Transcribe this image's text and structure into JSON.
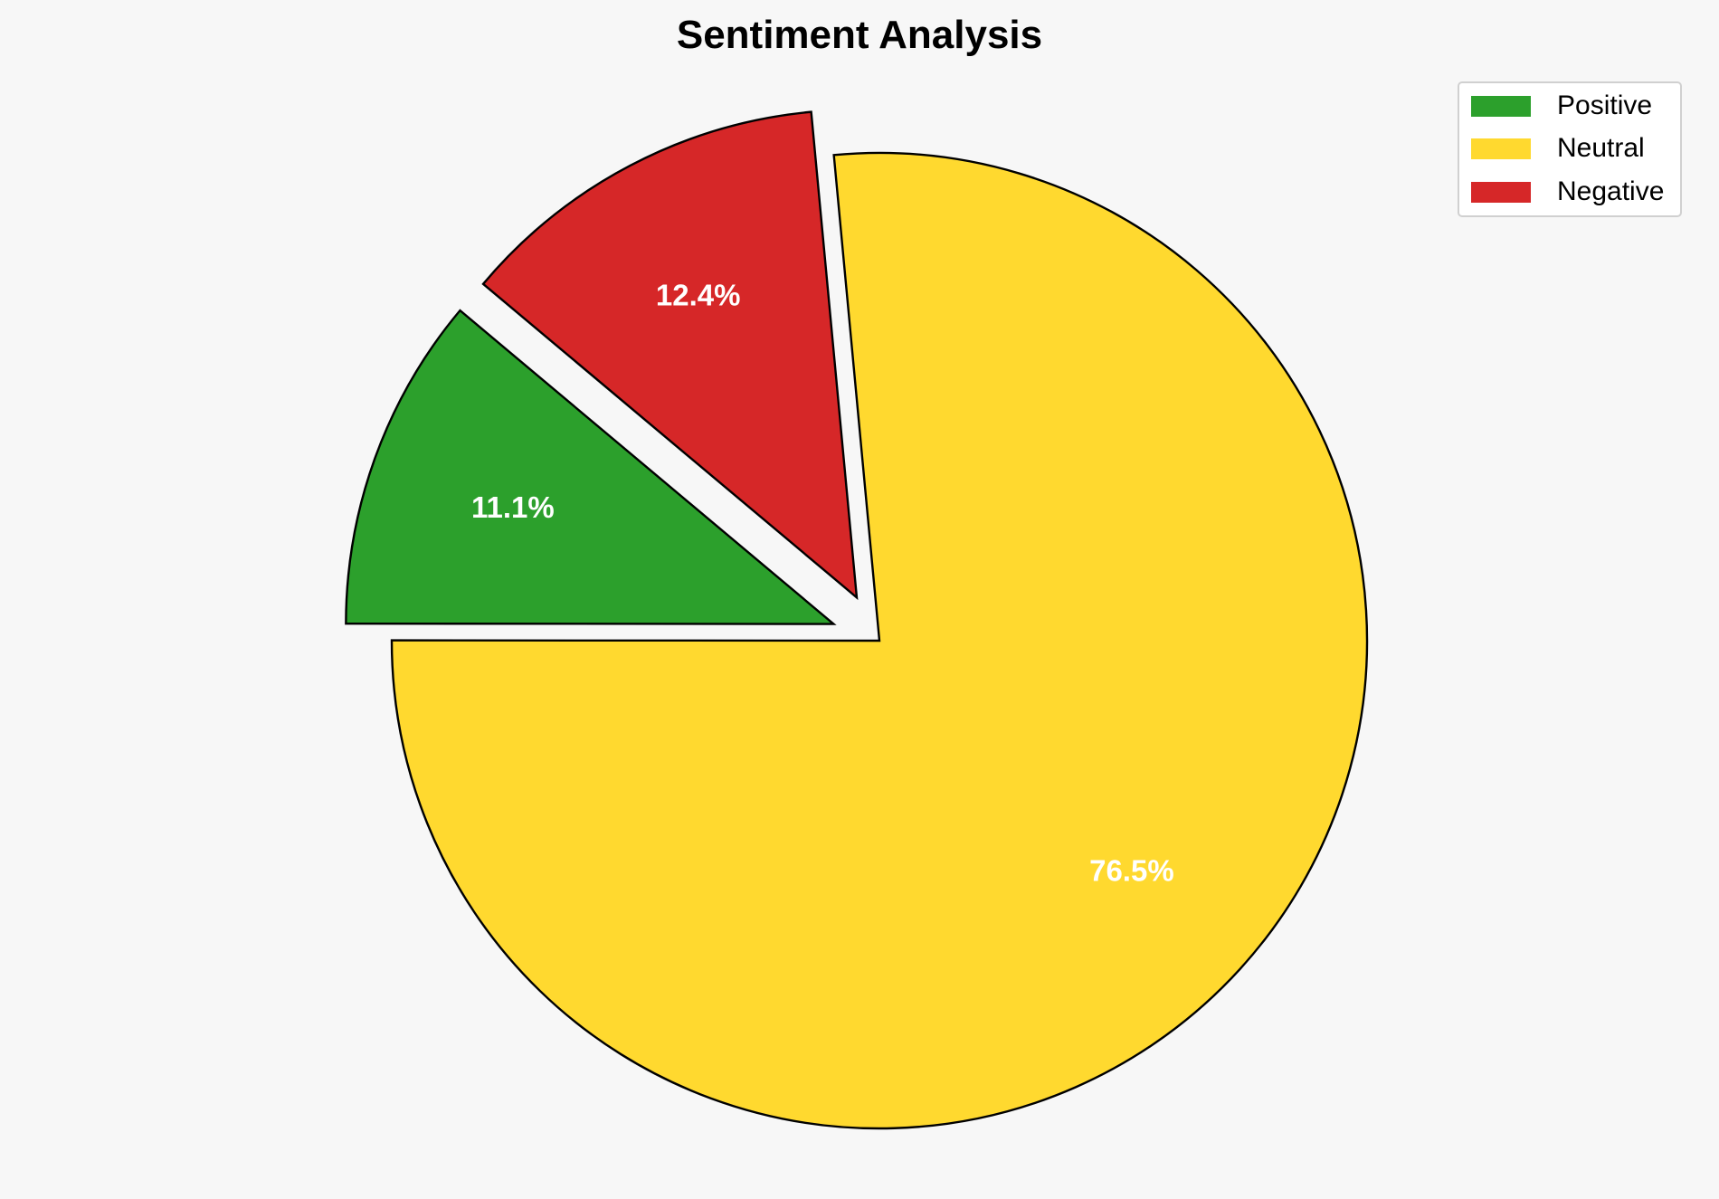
{
  "chart_data": {
    "type": "pie",
    "title": "Sentiment Analysis",
    "labels": [
      "Positive",
      "Neutral",
      "Negative"
    ],
    "values": [
      11.1,
      76.5,
      12.4
    ],
    "autopct_labels": [
      "11.1%",
      "76.5%",
      "12.4%"
    ],
    "colors": [
      "#2ca02c",
      "#ffd92f",
      "#d62728"
    ],
    "explode": [
      0.1,
      0,
      0.1
    ],
    "start_angle": 140,
    "edge_color": "#000000",
    "legend": {
      "position": "top-right",
      "entries": [
        "Positive",
        "Neutral",
        "Negative"
      ]
    }
  }
}
